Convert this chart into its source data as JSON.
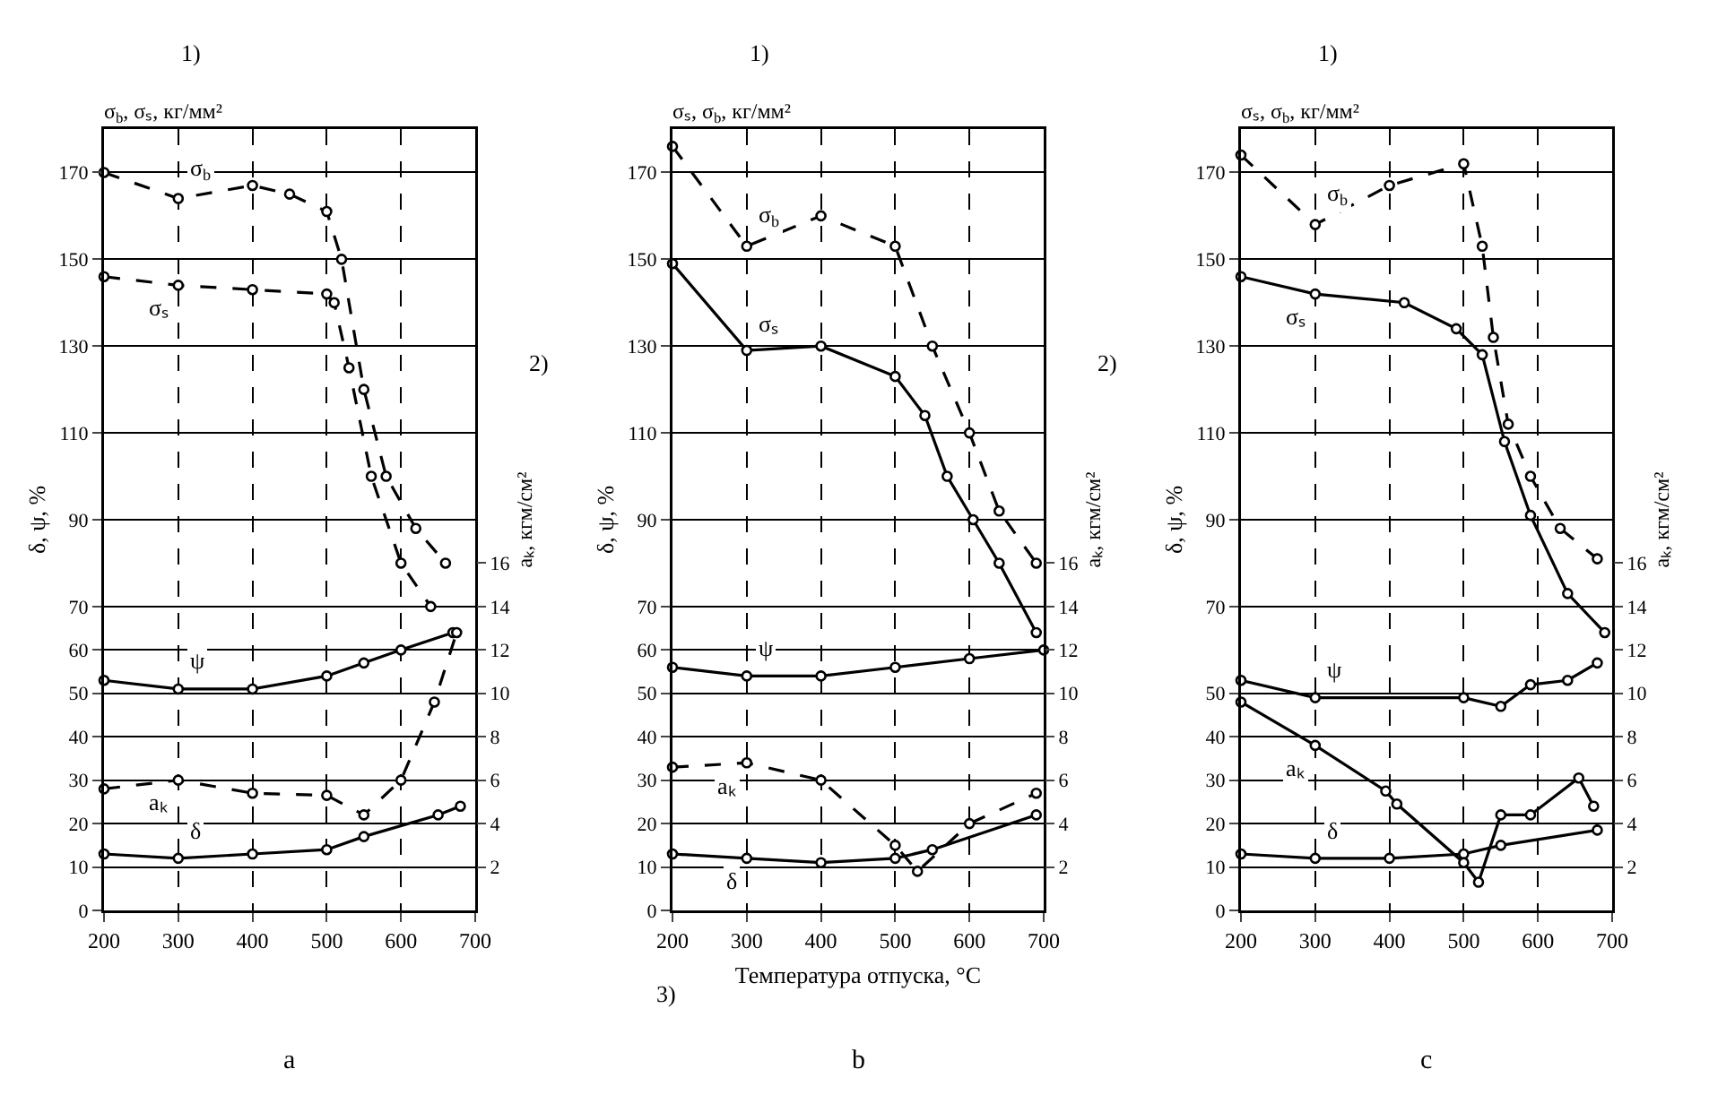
{
  "chart_data": [
    {
      "type": "line",
      "title": "σ$_{b}$, σₛ, кг/мм²",
      "subtitle": "a",
      "ylabel": "δ, ψ, %",
      "y2label": "aₖ, кгм/см²",
      "annotations": [
        "1)",
        "2)"
      ],
      "xlim": [
        200,
        700
      ],
      "xticks": [
        200,
        300,
        400,
        500,
        600,
        700
      ],
      "ylim": [
        0,
        180
      ],
      "yticks": [
        0,
        10,
        20,
        30,
        40,
        50,
        60,
        70,
        90,
        110,
        130,
        150,
        170
      ],
      "y2lim": [
        0,
        36
      ],
      "y2ticks": [
        2,
        4,
        6,
        8,
        10,
        12,
        14,
        16
      ],
      "grid": true,
      "legend": false,
      "marker": "circle",
      "series": [
        {
          "name": "σ$_{b}$",
          "color": "#000000",
          "line_style": "dashed",
          "x": [
            200,
            300,
            400,
            450,
            500,
            520,
            550,
            580,
            620,
            660
          ],
          "values": [
            170,
            164,
            167,
            165,
            161,
            150,
            120,
            100,
            88,
            80
          ]
        },
        {
          "name": "σₛ",
          "color": "#000000",
          "line_style": "dashed",
          "x": [
            200,
            300,
            400,
            500,
            510,
            530,
            560,
            600,
            640
          ],
          "values": [
            146,
            144,
            143,
            142,
            140,
            125,
            100,
            80,
            70
          ]
        },
        {
          "name": "ψ",
          "color": "#000000",
          "line_style": "solid",
          "x": [
            200,
            300,
            400,
            500,
            550,
            600,
            670
          ],
          "values": [
            53,
            51,
            51,
            54,
            57,
            60,
            64
          ]
        },
        {
          "name": "aₖ",
          "color": "#000000",
          "line_style": "dashed",
          "axis": "y2",
          "x": [
            200,
            300,
            400,
            500,
            550,
            600,
            645,
            675
          ],
          "values": [
            5.6,
            6,
            5.4,
            5.3,
            4.4,
            6,
            9.6,
            12.8
          ]
        },
        {
          "name": "δ",
          "color": "#000000",
          "line_style": "solid",
          "x": [
            200,
            300,
            400,
            500,
            550,
            650,
            680
          ],
          "values": [
            13,
            12,
            13,
            14,
            17,
            22,
            24
          ]
        }
      ]
    },
    {
      "type": "line",
      "title": "σₛ, σ$_{b}$, кг/мм²",
      "subtitle": "b",
      "xlabel": "Температура отпуска, °C",
      "ylabel": "δ, ψ, %",
      "y2label": "aₖ, кгм/см²",
      "annotations": [
        "1)",
        "2)",
        "3)"
      ],
      "xlim": [
        200,
        700
      ],
      "xticks": [
        200,
        300,
        400,
        500,
        600,
        700
      ],
      "ylim": [
        0,
        180
      ],
      "yticks": [
        0,
        10,
        20,
        30,
        40,
        50,
        60,
        70,
        90,
        110,
        130,
        150,
        170
      ],
      "y2lim": [
        0,
        36
      ],
      "y2ticks": [
        2,
        4,
        6,
        8,
        10,
        12,
        14,
        16
      ],
      "grid": true,
      "legend": false,
      "marker": "circle",
      "series": [
        {
          "name": "σ$_{b}$",
          "color": "#000000",
          "line_style": "dashed",
          "x": [
            200,
            300,
            400,
            500,
            550,
            600,
            640,
            690
          ],
          "values": [
            176,
            153,
            160,
            153,
            130,
            110,
            92,
            80
          ]
        },
        {
          "name": "σₛ",
          "color": "#000000",
          "line_style": "solid",
          "x": [
            200,
            300,
            400,
            500,
            540,
            570,
            605,
            640,
            690
          ],
          "values": [
            149,
            129,
            130,
            123,
            114,
            100,
            90,
            80,
            64
          ]
        },
        {
          "name": "ψ",
          "color": "#000000",
          "line_style": "solid",
          "x": [
            200,
            300,
            400,
            500,
            600,
            700
          ],
          "values": [
            56,
            54,
            54,
            56,
            58,
            60
          ]
        },
        {
          "name": "aₖ",
          "color": "#000000",
          "line_style": "dashed",
          "axis": "y2",
          "x": [
            200,
            300,
            400,
            500,
            530,
            600,
            690
          ],
          "values": [
            6.6,
            6.8,
            6,
            3,
            1.8,
            4,
            5.4
          ]
        },
        {
          "name": "δ",
          "color": "#000000",
          "line_style": "solid",
          "x": [
            200,
            300,
            400,
            500,
            550,
            690
          ],
          "values": [
            13,
            12,
            11,
            12,
            14,
            22
          ]
        }
      ]
    },
    {
      "type": "line",
      "title": "σₛ, σ$_{b}$, кг/мм²",
      "subtitle": "c",
      "ylabel": "δ, ψ, %",
      "y2label": "aₖ, кгм/см²",
      "annotations": [
        "1)"
      ],
      "xlim": [
        200,
        700
      ],
      "xticks": [
        200,
        300,
        400,
        500,
        600,
        700
      ],
      "ylim": [
        0,
        180
      ],
      "yticks": [
        0,
        10,
        20,
        30,
        40,
        50,
        70,
        90,
        110,
        130,
        150,
        170
      ],
      "y2lim": [
        0,
        36
      ],
      "y2ticks": [
        2,
        4,
        6,
        8,
        10,
        12,
        14,
        16
      ],
      "grid": true,
      "legend": false,
      "marker": "circle",
      "series": [
        {
          "name": "σ$_{b}$",
          "color": "#000000",
          "line_style": "dashed",
          "x": [
            200,
            300,
            400,
            500,
            525,
            540,
            560,
            590,
            630,
            680
          ],
          "values": [
            174,
            158,
            167,
            172,
            153,
            132,
            112,
            100,
            88,
            81
          ]
        },
        {
          "name": "σₛ",
          "color": "#000000",
          "line_style": "solid",
          "x": [
            200,
            300,
            420,
            490,
            525,
            555,
            590,
            640,
            690
          ],
          "values": [
            146,
            142,
            140,
            134,
            128,
            108,
            91,
            73,
            64
          ]
        },
        {
          "name": "ψ",
          "color": "#000000",
          "line_style": "solid",
          "x": [
            200,
            300,
            500,
            550,
            590,
            640,
            680
          ],
          "values": [
            53,
            49,
            49,
            47,
            52,
            53,
            57
          ]
        },
        {
          "name": "aₖ",
          "color": "#000000",
          "line_style": "solid",
          "axis": "y2",
          "x": [
            200,
            300,
            395,
            410,
            500,
            520,
            550,
            590,
            655,
            675
          ],
          "values": [
            9.6,
            7.6,
            5.5,
            4.9,
            2.2,
            1.3,
            4.4,
            4.4,
            6.1,
            4.8
          ]
        },
        {
          "name": "δ",
          "color": "#000000",
          "line_style": "solid",
          "x": [
            200,
            300,
            400,
            500,
            550,
            680
          ],
          "values": [
            13,
            12,
            12,
            13,
            15,
            18.5
          ]
        }
      ]
    }
  ]
}
